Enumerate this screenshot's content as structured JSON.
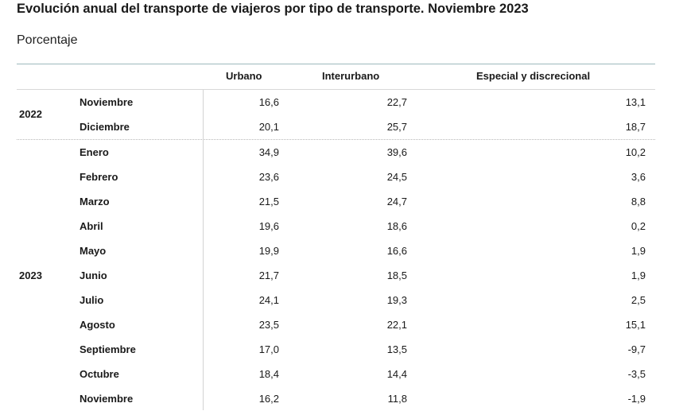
{
  "title": "Evolución anual del transporte de viajeros por tipo de transporte. Noviembre 2023",
  "subtitle": "Porcentaje",
  "columns": [
    "Urbano",
    "Interurbano",
    "Especial y discrecional"
  ],
  "groups": [
    {
      "year": "2022",
      "rows": [
        {
          "month": "Noviembre",
          "urbano": "16,6",
          "interurbano": "22,7",
          "especial": "13,1"
        },
        {
          "month": "Diciembre",
          "urbano": "20,1",
          "interurbano": "25,7",
          "especial": "18,7"
        }
      ]
    },
    {
      "year": "2023",
      "rows": [
        {
          "month": "Enero",
          "urbano": "34,9",
          "interurbano": "39,6",
          "especial": "10,2"
        },
        {
          "month": "Febrero",
          "urbano": "23,6",
          "interurbano": "24,5",
          "especial": "3,6"
        },
        {
          "month": "Marzo",
          "urbano": "21,5",
          "interurbano": "24,7",
          "especial": "8,8"
        },
        {
          "month": "Abril",
          "urbano": "19,6",
          "interurbano": "18,6",
          "especial": "0,2"
        },
        {
          "month": "Mayo",
          "urbano": "19,9",
          "interurbano": "16,6",
          "especial": "1,9"
        },
        {
          "month": "Junio",
          "urbano": "21,7",
          "interurbano": "18,5",
          "especial": "1,9"
        },
        {
          "month": "Julio",
          "urbano": "24,1",
          "interurbano": "19,3",
          "especial": "2,5"
        },
        {
          "month": "Agosto",
          "urbano": "23,5",
          "interurbano": "22,1",
          "especial": "15,1"
        },
        {
          "month": "Septiembre",
          "urbano": "17,0",
          "interurbano": "13,5",
          "especial": "-9,7"
        },
        {
          "month": "Octubre",
          "urbano": "18,4",
          "interurbano": "14,4",
          "especial": "-3,5"
        },
        {
          "month": "Noviembre",
          "urbano": "16,2",
          "interurbano": "11,8",
          "especial": "-1,9"
        }
      ]
    }
  ]
}
